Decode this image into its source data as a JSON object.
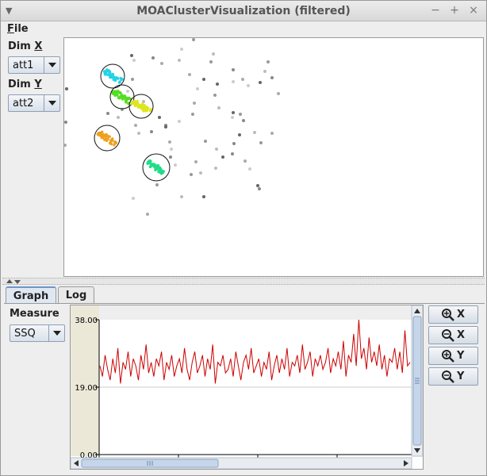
{
  "window": {
    "title": "MOAClusterVisualization (filtered)"
  },
  "menubar": {
    "file_label": "File"
  },
  "left_panel": {
    "dim_x_label": "Dim X",
    "dim_x_value": "att1",
    "dim_y_label": "Dim Y",
    "dim_y_value": "att2"
  },
  "tabs": [
    {
      "label": "Graph",
      "active": true
    },
    {
      "label": "Log",
      "active": false
    }
  ],
  "measure": {
    "label": "Measure",
    "value": "SSQ"
  },
  "zoom_buttons": [
    {
      "label": "X",
      "icon": "zoom-in-icon"
    },
    {
      "label": "X",
      "icon": "zoom-out-icon"
    },
    {
      "label": "Y",
      "icon": "zoom-in-icon"
    },
    {
      "label": "Y",
      "icon": "zoom-out-icon"
    }
  ],
  "colors": {
    "series": "#cc0000",
    "cluster_cyan": "#22d3e6",
    "cluster_green": "#55dd22",
    "cluster_yellow": "#dde61a",
    "cluster_orange": "#f0a020",
    "cluster_teal": "#22dd88"
  },
  "chart_data": {
    "type": "line",
    "ylim": [
      0,
      38
    ],
    "y_ticks": [
      "38.00",
      "19.00",
      "0.00"
    ],
    "series": [
      {
        "values": [
          25,
          22,
          28,
          24,
          21,
          27,
          23,
          30,
          20,
          26,
          24,
          29,
          22,
          27,
          25,
          21,
          28,
          24,
          31,
          23,
          26,
          22,
          27,
          25,
          29,
          21,
          26,
          24,
          28,
          22,
          25,
          27,
          23,
          30,
          24,
          21,
          26,
          29,
          23,
          25,
          28,
          22,
          27,
          24,
          31,
          20,
          26,
          25,
          28,
          23,
          24,
          27,
          22,
          29,
          25,
          21,
          26,
          28,
          24,
          30,
          23,
          25,
          27,
          22,
          26,
          24,
          29,
          21,
          25,
          28,
          23,
          27,
          24,
          30,
          22,
          26,
          25,
          28,
          23,
          31,
          24,
          26,
          29,
          22,
          27,
          25,
          28,
          24,
          26,
          30,
          23,
          27,
          25,
          29,
          24,
          32,
          22,
          28,
          26,
          34,
          25,
          38,
          27,
          30,
          24,
          33,
          26,
          29,
          25,
          31,
          24,
          28,
          22,
          27,
          26,
          30,
          24,
          29,
          23,
          35,
          25,
          26
        ]
      }
    ]
  }
}
